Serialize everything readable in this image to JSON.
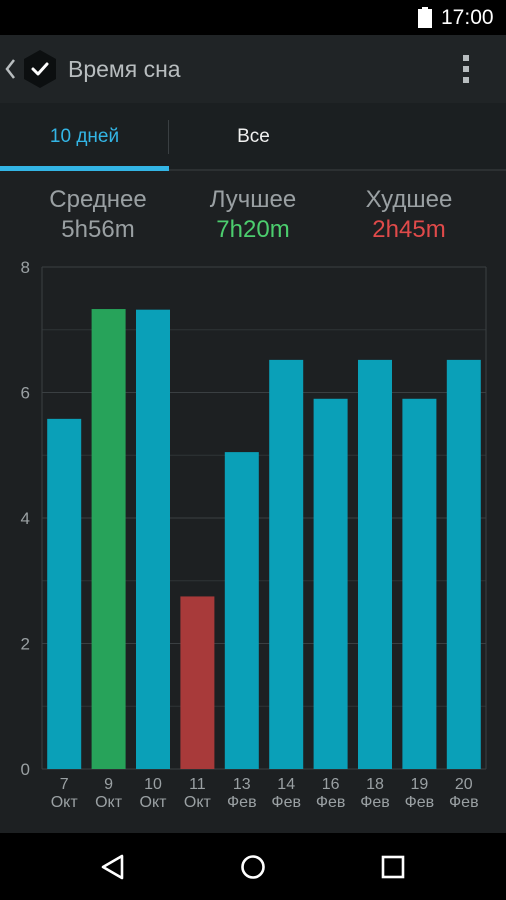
{
  "status_bar": {
    "time": "17:00",
    "icons": [
      "battery-icon"
    ]
  },
  "action_bar": {
    "title": "Время сна",
    "icons": [
      "back-icon",
      "app-clock-icon",
      "overflow-menu-icon"
    ]
  },
  "tabs": [
    {
      "label": "10 дней",
      "selected": true
    },
    {
      "label": "Все",
      "selected": false
    }
  ],
  "stats": {
    "average": {
      "label": "Среднее",
      "value": "5h56m"
    },
    "best": {
      "label": "Лучшее",
      "value": "7h20m"
    },
    "worst": {
      "label": "Худшее",
      "value": "2h45m"
    }
  },
  "colors": {
    "accent": "#33b5e5",
    "bar": "#0aa0b8",
    "best": "#27a35a",
    "worst": "#a83a3a",
    "best_text": "#4ccd6e",
    "worst_text": "#e04a4a"
  },
  "chart_data": {
    "type": "bar",
    "categories": [
      "7 Окт",
      "9 Окт",
      "10 Окт",
      "11 Окт",
      "13 Фев",
      "14 Фев",
      "16 Фев",
      "18 Фев",
      "19 Фев",
      "20 Фев"
    ],
    "day_labels": [
      "7",
      "9",
      "10",
      "11",
      "13",
      "14",
      "16",
      "18",
      "19",
      "20"
    ],
    "month_labels": [
      "Окт",
      "Окт",
      "Окт",
      "Окт",
      "Фев",
      "Фев",
      "Фев",
      "Фев",
      "Фев",
      "Фев"
    ],
    "values": [
      5.58,
      7.33,
      7.32,
      2.75,
      5.05,
      6.52,
      5.9,
      6.52,
      5.9,
      6.52
    ],
    "highlight": [
      "",
      "best",
      "",
      "worst",
      "",
      "",
      "",
      "",
      "",
      ""
    ],
    "ylim": [
      0,
      8
    ],
    "yticks": [
      "0",
      "2",
      "4",
      "6",
      "8"
    ],
    "ytick_values": [
      0,
      2,
      4,
      6,
      8
    ],
    "grid": true
  },
  "nav_bar": {
    "icons": [
      "nav-back-icon",
      "nav-home-icon",
      "nav-recent-apps-icon"
    ]
  }
}
